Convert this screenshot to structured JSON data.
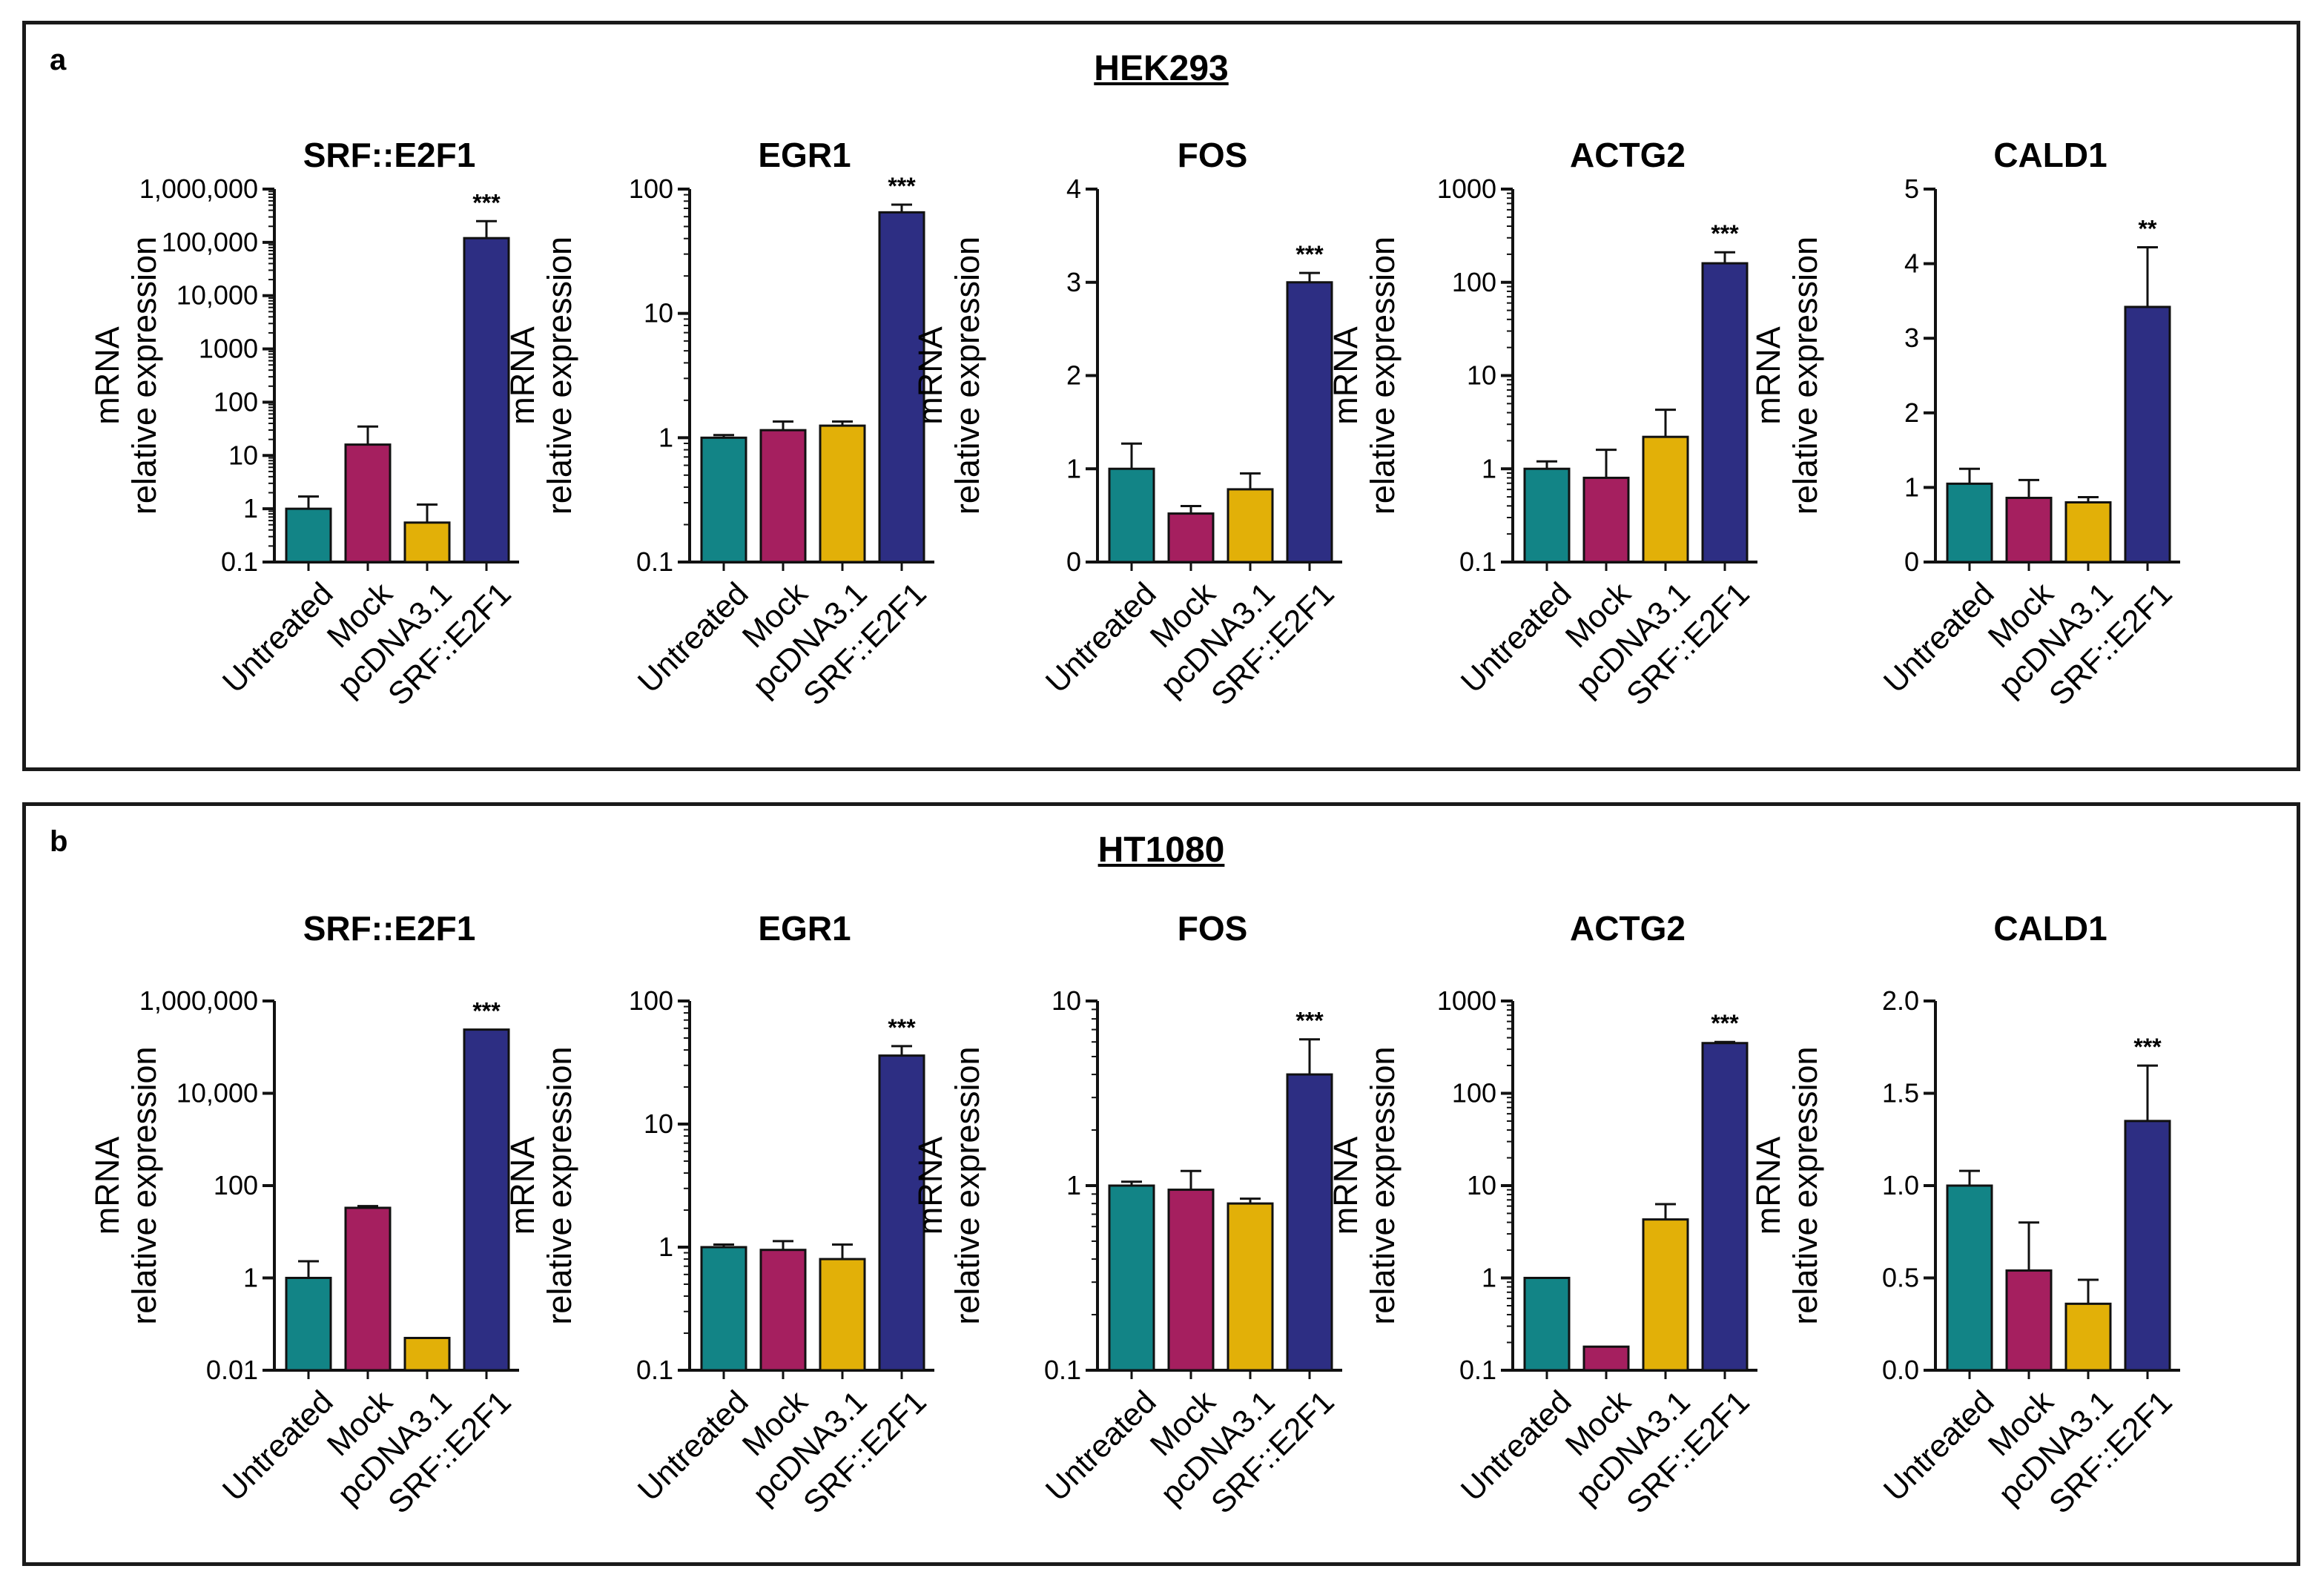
{
  "panels": [
    {
      "letter": "a",
      "title": "HEK293"
    },
    {
      "letter": "b",
      "title": "HT1080"
    }
  ],
  "axis_title": {
    "line1": "mRNA",
    "line2": "relative expression"
  },
  "colors": {
    "Untreated": "#128486",
    "Mock": "#a51f5f",
    "pcDNA3.1": "#e2b008",
    "SRF::E2F1": "#2d2e83"
  },
  "chart_data": [
    {
      "panel": "a",
      "type": "bar",
      "title": "SRF::E2F1",
      "scale": "log",
      "ylim": [
        0.1,
        1000000
      ],
      "ticks": [
        0.1,
        1,
        10,
        100,
        1000,
        10000,
        100000,
        1000000
      ],
      "tick_labels": [
        "0.1",
        "1",
        "10",
        "100",
        "1000",
        "10,000",
        "100,000",
        "1,000,000"
      ],
      "categories": [
        "Untreated",
        "Mock",
        "pcDNA3.1",
        "SRF::E2F1"
      ],
      "values": [
        1,
        16,
        0.55,
        120000
      ],
      "errors": [
        1.7,
        35,
        1.2,
        250000
      ],
      "sig": [
        "",
        "",
        "",
        "***"
      ]
    },
    {
      "panel": "a",
      "type": "bar",
      "title": "EGR1",
      "scale": "log",
      "ylim": [
        0.1,
        100
      ],
      "ticks": [
        0.1,
        1,
        10,
        100
      ],
      "tick_labels": [
        "0.1",
        "1",
        "10",
        "100"
      ],
      "categories": [
        "Untreated",
        "Mock",
        "pcDNA3.1",
        "SRF::E2F1"
      ],
      "values": [
        1.0,
        1.15,
        1.25,
        65
      ],
      "errors": [
        1.05,
        1.35,
        1.35,
        75
      ],
      "sig": [
        "",
        "",
        "",
        "***"
      ]
    },
    {
      "panel": "a",
      "type": "bar",
      "title": "FOS",
      "scale": "linear",
      "ylim": [
        0,
        4
      ],
      "ticks": [
        0,
        1,
        2,
        3,
        4
      ],
      "tick_labels": [
        "0",
        "1",
        "2",
        "3",
        "4"
      ],
      "categories": [
        "Untreated",
        "Mock",
        "pcDNA3.1",
        "SRF::E2F1"
      ],
      "values": [
        1.0,
        0.52,
        0.78,
        3.0
      ],
      "errors": [
        1.27,
        0.6,
        0.95,
        3.1
      ],
      "sig": [
        "",
        "",
        "",
        "***"
      ]
    },
    {
      "panel": "a",
      "type": "bar",
      "title": "ACTG2",
      "scale": "log",
      "ylim": [
        0.1,
        1000
      ],
      "ticks": [
        0.1,
        1,
        10,
        100,
        1000
      ],
      "tick_labels": [
        "0.1",
        "1",
        "10",
        "100",
        "1000"
      ],
      "categories": [
        "Untreated",
        "Mock",
        "pcDNA3.1",
        "SRF::E2F1"
      ],
      "values": [
        1.0,
        0.8,
        2.2,
        160
      ],
      "errors": [
        1.2,
        1.6,
        4.3,
        210
      ],
      "sig": [
        "",
        "",
        "",
        "***"
      ]
    },
    {
      "panel": "a",
      "type": "bar",
      "title": "CALD1",
      "scale": "linear",
      "ylim": [
        0,
        5
      ],
      "ticks": [
        0,
        1,
        2,
        3,
        4,
        5
      ],
      "tick_labels": [
        "0",
        "1",
        "2",
        "3",
        "4",
        "5"
      ],
      "categories": [
        "Untreated",
        "Mock",
        "pcDNA3.1",
        "SRF::E2F1"
      ],
      "values": [
        1.05,
        0.86,
        0.8,
        3.42
      ],
      "errors": [
        1.25,
        1.1,
        0.87,
        4.22
      ],
      "sig": [
        "",
        "",
        "",
        "**"
      ]
    },
    {
      "panel": "b",
      "type": "bar",
      "title": "SRF::E2F1",
      "scale": "log",
      "ylim": [
        0.01,
        1000000
      ],
      "ticks": [
        0.01,
        1,
        100,
        10000,
        1000000
      ],
      "tick_labels": [
        "0.01",
        "1",
        "100",
        "10,000",
        "1,000,000"
      ],
      "categories": [
        "Untreated",
        "Mock",
        "pcDNA3.1",
        "SRF::E2F1"
      ],
      "values": [
        1.0,
        33,
        0.05,
        240000
      ],
      "errors": [
        2.3,
        36,
        0.05,
        240000
      ],
      "sig": [
        "",
        "",
        "",
        "***"
      ]
    },
    {
      "panel": "b",
      "type": "bar",
      "title": "EGR1",
      "scale": "log",
      "ylim": [
        0.1,
        100
      ],
      "ticks": [
        0.1,
        1,
        10,
        100
      ],
      "tick_labels": [
        "0.1",
        "1",
        "10",
        "100"
      ],
      "categories": [
        "Untreated",
        "Mock",
        "pcDNA3.1",
        "SRF::E2F1"
      ],
      "values": [
        1.0,
        0.95,
        0.8,
        36
      ],
      "errors": [
        1.05,
        1.12,
        1.05,
        43
      ],
      "sig": [
        "",
        "",
        "",
        "***"
      ]
    },
    {
      "panel": "b",
      "type": "bar",
      "title": "FOS",
      "scale": "log",
      "ylim": [
        0.1,
        10
      ],
      "ticks": [
        0.1,
        1,
        10
      ],
      "tick_labels": [
        "0.1",
        "1",
        "10"
      ],
      "categories": [
        "Untreated",
        "Mock",
        "pcDNA3.1",
        "SRF::E2F1"
      ],
      "values": [
        1.0,
        0.95,
        0.8,
        4.0
      ],
      "errors": [
        1.05,
        1.2,
        0.85,
        6.2
      ],
      "sig": [
        "",
        "",
        "",
        "***"
      ]
    },
    {
      "panel": "b",
      "type": "bar",
      "title": "ACTG2",
      "scale": "log",
      "ylim": [
        0.1,
        1000
      ],
      "ticks": [
        0.1,
        1,
        10,
        100,
        1000
      ],
      "tick_labels": [
        "0.1",
        "1",
        "10",
        "100",
        "1000"
      ],
      "categories": [
        "Untreated",
        "Mock",
        "pcDNA3.1",
        "SRF::E2F1"
      ],
      "values": [
        1.0,
        0.18,
        4.3,
        350
      ],
      "errors": [
        1.0,
        0.18,
        6.3,
        360
      ],
      "sig": [
        "",
        "",
        "",
        "***"
      ]
    },
    {
      "panel": "b",
      "type": "bar",
      "title": "CALD1",
      "scale": "linear",
      "ylim": [
        0,
        2
      ],
      "ticks": [
        0,
        0.5,
        1,
        1.5,
        2
      ],
      "tick_labels": [
        "0.0",
        "0.5",
        "1.0",
        "1.5",
        "2.0"
      ],
      "categories": [
        "Untreated",
        "Mock",
        "pcDNA3.1",
        "SRF::E2F1"
      ],
      "values": [
        1.0,
        0.54,
        0.36,
        1.35
      ],
      "errors": [
        1.08,
        0.8,
        0.49,
        1.65
      ],
      "sig": [
        "",
        "",
        "",
        "***"
      ]
    }
  ]
}
